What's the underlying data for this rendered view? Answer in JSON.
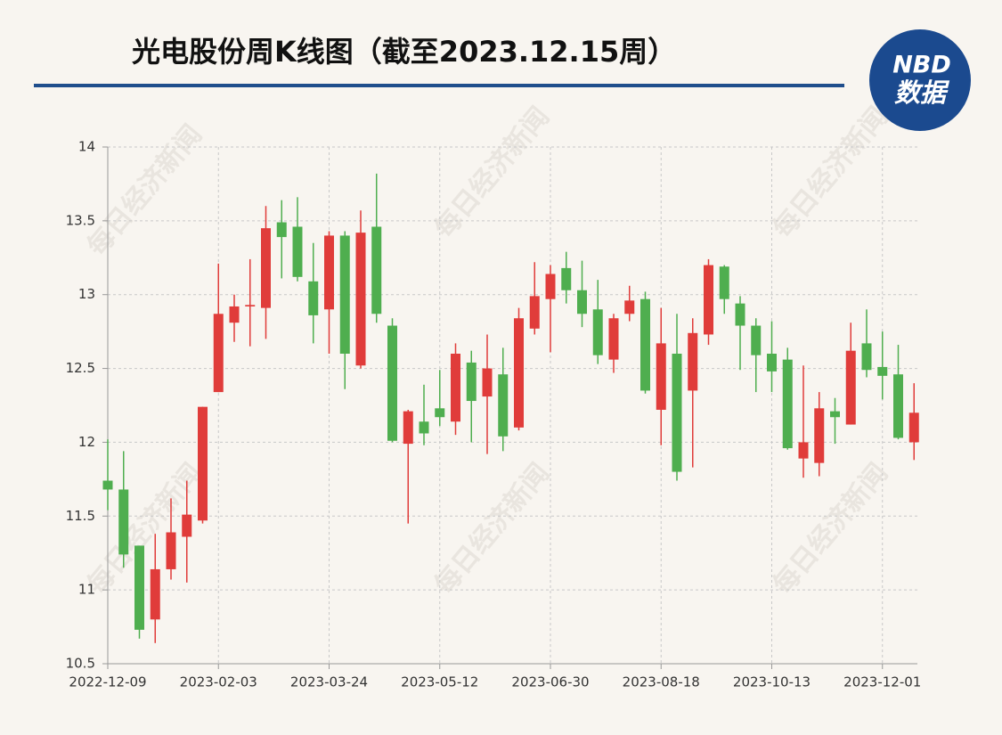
{
  "chart_data": {
    "type": "candlestick",
    "title": "光电股份周K线图（截至2023.12.15周）",
    "logo_top": "NBD",
    "logo_bottom": "数据",
    "watermark": "每日经济新闻",
    "categories": [
      "2022-12-09",
      null,
      null,
      null,
      null,
      null,
      null,
      "2023-02-03",
      null,
      null,
      null,
      null,
      null,
      null,
      "2023-03-24",
      null,
      null,
      null,
      null,
      null,
      null,
      "2023-05-12",
      null,
      null,
      null,
      null,
      null,
      null,
      "2023-06-30",
      null,
      null,
      null,
      null,
      null,
      null,
      "2023-08-18",
      null,
      null,
      null,
      null,
      null,
      null,
      "2023-10-13",
      null,
      null,
      null,
      null,
      null,
      null,
      "2023-12-01",
      null,
      null
    ],
    "open": [
      11.74,
      11.68,
      11.3,
      10.8,
      11.14,
      11.36,
      11.47,
      12.34,
      12.81,
      12.92,
      12.91,
      13.49,
      13.46,
      13.09,
      12.9,
      13.4,
      12.52,
      13.46,
      12.79,
      11.99,
      12.14,
      12.23,
      12.14,
      12.54,
      12.31,
      12.46,
      12.1,
      12.77,
      12.97,
      13.18,
      13.03,
      12.9,
      12.56,
      12.87,
      12.97,
      12.22,
      12.6,
      12.35,
      12.73,
      13.19,
      12.94,
      12.79,
      12.6,
      12.56,
      11.89,
      11.86,
      12.21,
      12.12,
      12.67,
      12.51,
      12.46,
      12.0
    ],
    "high": [
      12.02,
      11.94,
      11.3,
      11.38,
      11.62,
      11.74,
      12.24,
      13.21,
      13.0,
      13.24,
      13.6,
      13.64,
      13.66,
      13.35,
      13.43,
      13.43,
      13.57,
      13.82,
      12.84,
      12.22,
      12.39,
      12.49,
      12.67,
      12.62,
      12.73,
      12.64,
      12.91,
      13.22,
      13.2,
      13.29,
      13.23,
      13.1,
      12.87,
      13.06,
      13.02,
      12.91,
      12.87,
      12.84,
      13.24,
      13.2,
      12.99,
      12.84,
      12.82,
      12.64,
      12.52,
      12.34,
      12.3,
      12.81,
      12.9,
      12.75,
      12.66,
      12.4
    ],
    "low": [
      11.54,
      11.15,
      10.67,
      10.64,
      11.07,
      11.05,
      11.45,
      12.34,
      12.68,
      12.65,
      12.7,
      13.11,
      13.09,
      12.67,
      12.6,
      12.36,
      12.5,
      12.81,
      12.0,
      11.45,
      11.98,
      12.11,
      12.05,
      12.0,
      11.92,
      11.94,
      12.08,
      12.73,
      12.61,
      12.94,
      12.78,
      12.53,
      12.47,
      12.82,
      12.33,
      11.98,
      11.74,
      11.83,
      12.66,
      12.87,
      12.49,
      12.34,
      12.34,
      11.95,
      11.76,
      11.77,
      11.99,
      12.12,
      12.44,
      12.29,
      12.02,
      11.88
    ],
    "close": [
      11.68,
      11.24,
      10.73,
      11.14,
      11.39,
      11.51,
      12.24,
      12.87,
      12.92,
      12.93,
      13.45,
      13.39,
      13.12,
      12.86,
      13.4,
      12.6,
      13.42,
      12.87,
      12.01,
      12.21,
      12.06,
      12.17,
      12.6,
      12.28,
      12.5,
      12.04,
      12.84,
      12.99,
      13.14,
      13.03,
      12.87,
      12.59,
      12.84,
      12.96,
      12.35,
      12.67,
      11.8,
      12.74,
      13.2,
      12.97,
      12.79,
      12.59,
      12.48,
      11.96,
      12.0,
      12.23,
      12.17,
      12.62,
      12.49,
      12.45,
      12.03,
      12.2
    ],
    "up_color": "#e03c3a",
    "down_color": "#4fae4f",
    "ylim": [
      10.5,
      14
    ],
    "yticks": [
      10.5,
      11,
      11.5,
      12,
      12.5,
      13,
      13.5,
      14
    ],
    "grid": true
  }
}
